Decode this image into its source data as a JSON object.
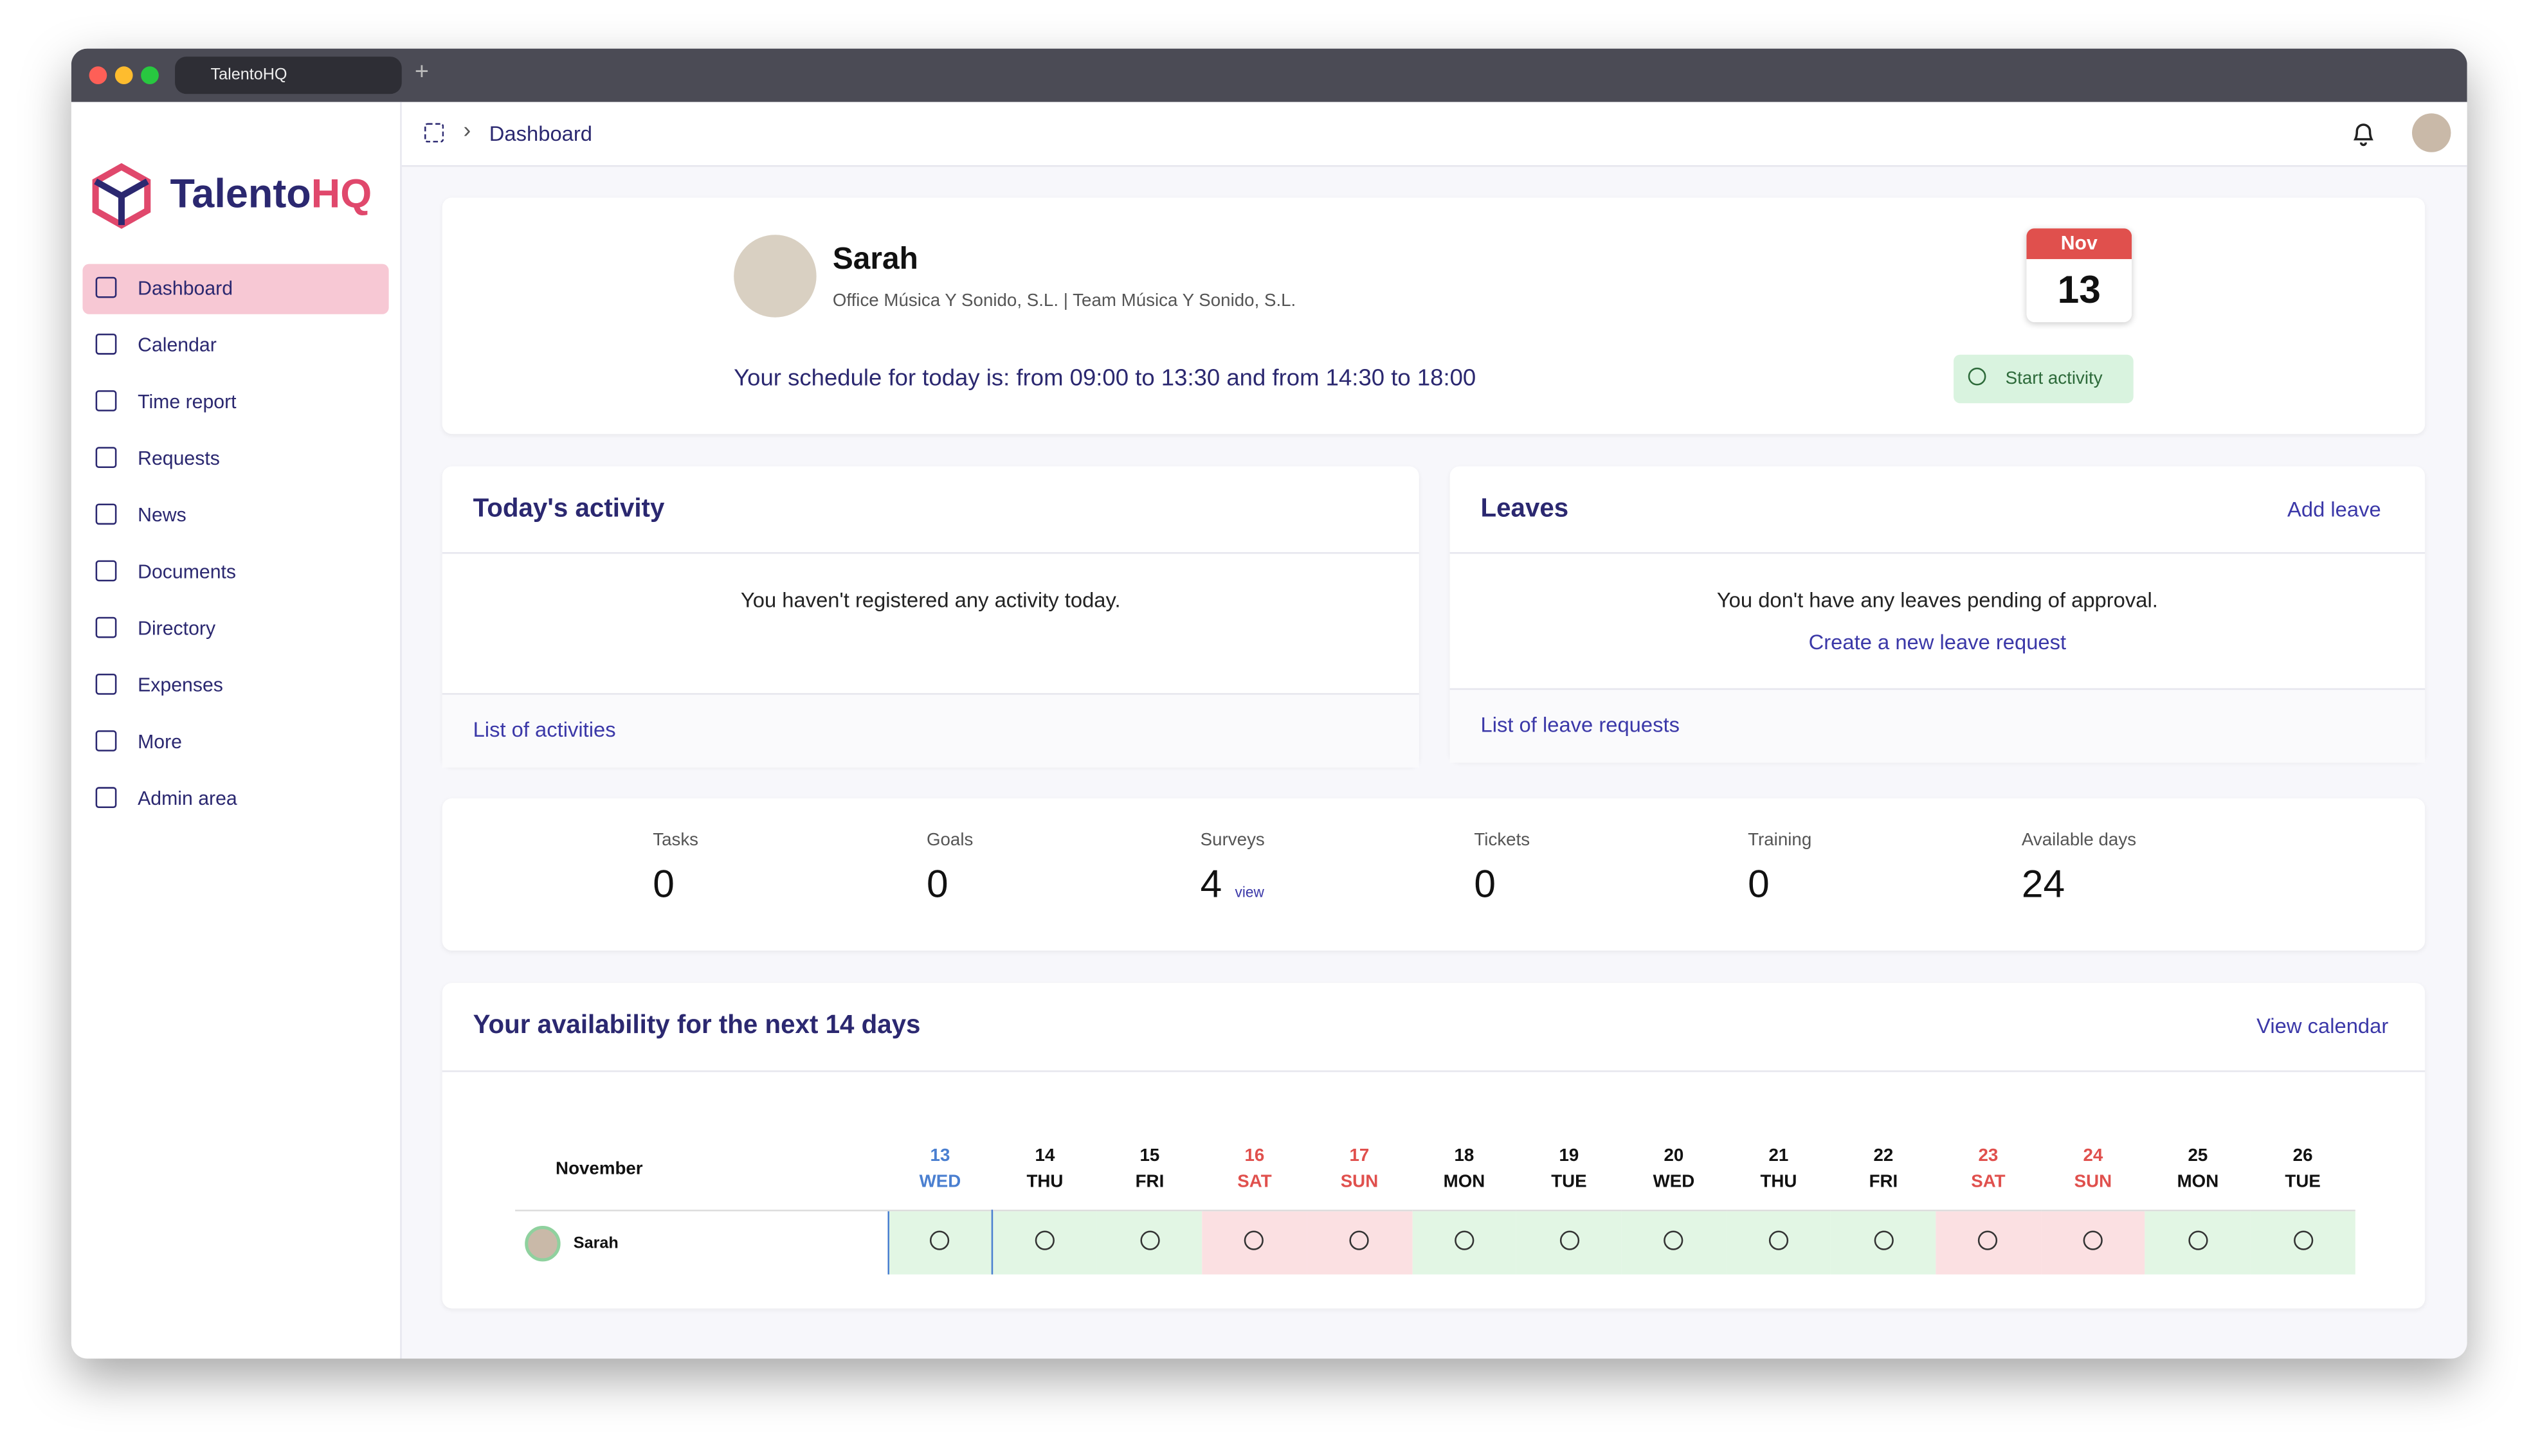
{
  "browser": {
    "tab_title": "TalentoHQ"
  },
  "breadcrumb": "Dashboard",
  "logo": {
    "name": "Talento",
    "suffix": "HQ"
  },
  "nav": [
    {
      "label": "Dashboard",
      "active": true
    },
    {
      "label": "Calendar"
    },
    {
      "label": "Time report"
    },
    {
      "label": "Requests"
    },
    {
      "label": "News"
    },
    {
      "label": "Documents"
    },
    {
      "label": "Directory"
    },
    {
      "label": "Expenses"
    },
    {
      "label": "More"
    },
    {
      "label": "Admin area"
    }
  ],
  "profile": {
    "name": "Sarah",
    "office": "Office Música Y Sonido, S.L.",
    "separator": "|",
    "team": "Team Música Y Sonido, S.L.",
    "schedule": "Your schedule for today is: from 09:00 to 13:30 and from 14:30 to 18:00",
    "month": "Nov",
    "day": 13,
    "action": "Start activity"
  },
  "activity": {
    "title": "Today's activity",
    "message": "You haven't registered any activity today.",
    "link": "List of activities"
  },
  "leaves": {
    "title": "Leaves",
    "action": "Add leave",
    "message": "You don't have any leaves pending of approval.",
    "create": "Create a new leave request",
    "link": "List of leave requests"
  },
  "stats": [
    {
      "label": "Tasks",
      "value": 0
    },
    {
      "label": "Goals",
      "value": 0
    },
    {
      "label": "Surveys",
      "value": 4,
      "link": "view"
    },
    {
      "label": "Tickets",
      "value": 0
    },
    {
      "label": "Training",
      "value": 0
    },
    {
      "label": "Available days",
      "value": 24
    }
  ],
  "availability": {
    "title": "Your availability for the next 14 days",
    "action": "View calendar",
    "month": "November",
    "person": "Sarah",
    "days": [
      {
        "date": 13,
        "weekday": "WED",
        "color": "#4a7fd0",
        "cell": "#e2f6e4",
        "highlight": true
      },
      {
        "date": 14,
        "weekday": "THU",
        "color": "#111111",
        "cell": "#e2f6e4"
      },
      {
        "date": 15,
        "weekday": "FRI",
        "color": "#111111",
        "cell": "#e2f6e4"
      },
      {
        "date": 16,
        "weekday": "SAT",
        "color": "#e0504d",
        "cell": "#fbe0e2"
      },
      {
        "date": 17,
        "weekday": "SUN",
        "color": "#e0504d",
        "cell": "#fbe0e2"
      },
      {
        "date": 18,
        "weekday": "MON",
        "color": "#111111",
        "cell": "#e2f6e4"
      },
      {
        "date": 19,
        "weekday": "TUE",
        "color": "#111111",
        "cell": "#e2f6e4"
      },
      {
        "date": 20,
        "weekday": "WED",
        "color": "#111111",
        "cell": "#e2f6e4"
      },
      {
        "date": 21,
        "weekday": "THU",
        "color": "#111111",
        "cell": "#e2f6e4"
      },
      {
        "date": 22,
        "weekday": "FRI",
        "color": "#111111",
        "cell": "#e2f6e4"
      },
      {
        "date": 23,
        "weekday": "SAT",
        "color": "#e0504d",
        "cell": "#fbe0e2"
      },
      {
        "date": 24,
        "weekday": "SUN",
        "color": "#e0504d",
        "cell": "#fbe0e2"
      },
      {
        "date": 25,
        "weekday": "MON",
        "color": "#111111",
        "cell": "#e2f6e4"
      },
      {
        "date": 26,
        "weekday": "TUE",
        "color": "#111111",
        "cell": "#e2f6e4"
      }
    ]
  }
}
